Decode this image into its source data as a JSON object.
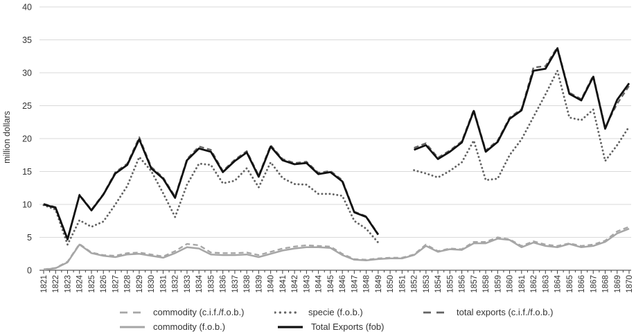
{
  "figure": {
    "type": "line-chart",
    "background": "#ffffff"
  },
  "colors": {
    "light_gray": "#a6a6a6",
    "dark_gray": "#636363",
    "black": "#111111",
    "gridline": "#d9d9d9",
    "axis_line": "#595959",
    "tick_mark": "#404040",
    "label_text": "#333333"
  },
  "chart_data": {
    "type": "line",
    "title": "",
    "xlabel": "",
    "ylabel": "million dollars",
    "ylim": [
      0,
      40
    ],
    "ytick_step": 5,
    "grid": "horizontal",
    "legend_position": "bottom",
    "categories": [
      1821,
      1822,
      1823,
      1824,
      1825,
      1826,
      1827,
      1828,
      1829,
      1830,
      1831,
      1832,
      1833,
      1834,
      1835,
      1836,
      1837,
      1838,
      1839,
      1840,
      1841,
      1842,
      1843,
      1844,
      1845,
      1846,
      1847,
      1848,
      1849,
      1850,
      1851,
      1852,
      1853,
      1854,
      1855,
      1856,
      1857,
      1858,
      1859,
      1860,
      1861,
      1862,
      1863,
      1864,
      1865,
      1866,
      1867,
      1868,
      1869,
      1870
    ],
    "series": [
      {
        "key": "commodity_cif",
        "name": "commodity (c.i.f./f.o.b.)",
        "style": "dashed",
        "color": "#a6a6a6",
        "width": 2.3,
        "dash": "7 4.5",
        "values": [
          0.15,
          0.35,
          1.3,
          4.0,
          2.7,
          2.3,
          2.2,
          2.6,
          2.7,
          2.4,
          2.1,
          2.9,
          4.0,
          3.8,
          2.7,
          2.6,
          2.6,
          2.7,
          2.3,
          2.8,
          3.3,
          3.6,
          3.8,
          3.7,
          3.6,
          2.5,
          1.7,
          1.6,
          1.8,
          1.9,
          1.9,
          2.4,
          3.9,
          2.9,
          3.3,
          3.2,
          4.3,
          4.3,
          5.0,
          4.7,
          3.7,
          4.4,
          3.9,
          3.7,
          4.1,
          3.7,
          3.9,
          4.5,
          5.9,
          6.6
        ]
      },
      {
        "key": "specie_fob",
        "name": "specie (f.o.b.)",
        "style": "dotted",
        "color": "#636363",
        "width": 2.9,
        "dash": "0.1 5.4",
        "cap": "round",
        "values": [
          9.9,
          9.2,
          3.9,
          7.6,
          6.6,
          7.4,
          10.0,
          12.8,
          17.2,
          15.1,
          11.7,
          8.1,
          13.0,
          16.2,
          16.0,
          13.2,
          13.6,
          15.5,
          12.6,
          16.4,
          14.0,
          13.1,
          13.0,
          11.6,
          11.6,
          11.3,
          7.5,
          6.3,
          4.2,
          null,
          null,
          15.2,
          14.7,
          14.1,
          15.1,
          16.4,
          19.7,
          13.7,
          13.9,
          17.5,
          19.9,
          23.3,
          26.7,
          30.3,
          23.2,
          22.8,
          24.4,
          16.6,
          19.0,
          21.8
        ]
      },
      {
        "key": "total_exports_cif",
        "name": "total exports (c.i.f./f.o.b.)",
        "style": "dashed",
        "color": "#636363",
        "width": 2.3,
        "dash": "7 4.5",
        "values": [
          10.1,
          9.6,
          4.8,
          11.5,
          9.2,
          11.6,
          14.9,
          16.2,
          20.2,
          15.7,
          14.1,
          11.2,
          16.9,
          18.8,
          18.3,
          15.1,
          16.8,
          18.1,
          14.4,
          19.0,
          16.9,
          16.3,
          16.5,
          14.8,
          15.1,
          13.7,
          8.9,
          8.2,
          5.5,
          null,
          null,
          18.6,
          19.3,
          17.1,
          18.2,
          19.6,
          24.4,
          18.2,
          19.7,
          23.2,
          24.5,
          30.8,
          31.0,
          33.9,
          27.0,
          26.0,
          29.6,
          21.7,
          25.3,
          28.0
        ]
      },
      {
        "key": "commodity_fob",
        "name": "commodity (f.o.b.)",
        "style": "solid",
        "color": "#a6a6a6",
        "width": 2.5,
        "dash": "",
        "values": [
          0.1,
          0.3,
          1.2,
          3.9,
          2.6,
          2.2,
          2.0,
          2.4,
          2.5,
          2.2,
          1.9,
          2.6,
          3.5,
          3.3,
          2.4,
          2.3,
          2.3,
          2.4,
          2.0,
          2.5,
          3.0,
          3.3,
          3.5,
          3.5,
          3.4,
          2.3,
          1.6,
          1.5,
          1.7,
          1.8,
          1.8,
          2.3,
          3.7,
          2.8,
          3.2,
          3.1,
          4.1,
          4.1,
          4.8,
          4.6,
          3.5,
          4.2,
          3.7,
          3.5,
          4.0,
          3.5,
          3.7,
          4.3,
          5.6,
          6.3
        ]
      },
      {
        "key": "total_exports_fob",
        "name": "Total Exports (fob)",
        "style": "solid",
        "color": "#111111",
        "width": 2.8,
        "dash": "",
        "values": [
          10.0,
          9.5,
          4.7,
          11.4,
          9.1,
          11.5,
          14.7,
          16.0,
          19.9,
          15.5,
          13.9,
          11.0,
          16.7,
          18.5,
          18.0,
          14.9,
          16.6,
          17.9,
          14.2,
          18.8,
          16.7,
          16.1,
          16.3,
          14.6,
          14.9,
          13.5,
          8.8,
          8.1,
          5.4,
          null,
          null,
          18.3,
          19.0,
          16.9,
          18.0,
          19.4,
          24.2,
          18.0,
          19.5,
          23.0,
          24.3,
          30.3,
          30.6,
          33.7,
          26.8,
          25.8,
          29.4,
          21.5,
          25.9,
          28.4
        ]
      }
    ]
  }
}
